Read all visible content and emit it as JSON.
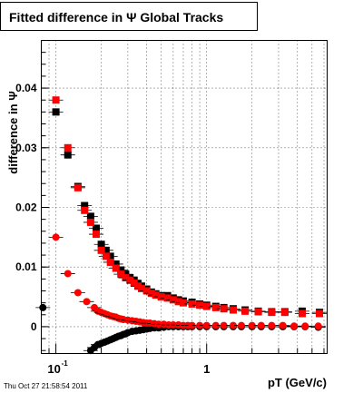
{
  "chart_data": {
    "type": "scatter",
    "title": "Fitted difference in Ψ  Global Tracks",
    "xlabel": "pT (GeV/c)",
    "ylabel": "difference in Ψ",
    "x_scale": "log",
    "xlim": [
      0.08,
      6.3
    ],
    "ylim": [
      -0.0045,
      0.048
    ],
    "grid": true,
    "x_ticks": [
      {
        "label": "10",
        "exp": "-1",
        "value": 0.1
      },
      {
        "label": "1",
        "exp": "",
        "value": 1
      }
    ],
    "y_ticks": [
      {
        "label": "0",
        "value": 0
      },
      {
        "label": "0.01",
        "value": 0.01
      },
      {
        "label": "0.02",
        "value": 0.02
      },
      {
        "label": "0.03",
        "value": 0.03
      },
      {
        "label": "0.04",
        "value": 0.04
      }
    ],
    "timestamp": "Thu Oct 27 21:58:54 2011",
    "series": [
      {
        "marker": "square",
        "color": "#000000",
        "x": [
          0.1,
          0.12,
          0.14,
          0.155,
          0.17,
          0.185,
          0.2,
          0.215,
          0.23,
          0.25,
          0.27,
          0.29,
          0.31,
          0.33,
          0.35,
          0.37,
          0.4,
          0.43,
          0.46,
          0.5,
          0.55,
          0.6,
          0.65,
          0.7,
          0.8,
          0.9,
          1.0,
          1.15,
          1.3,
          1.5,
          1.8,
          2.2,
          2.7,
          3.3,
          4.3,
          5.6
        ],
        "y": [
          0.036,
          0.0288,
          0.0235,
          0.0203,
          0.0185,
          0.0165,
          0.0138,
          0.0128,
          0.0118,
          0.0105,
          0.0095,
          0.0088,
          0.0082,
          0.0078,
          0.0072,
          0.0068,
          0.0063,
          0.0058,
          0.0055,
          0.0052,
          0.0052,
          0.0048,
          0.0045,
          0.0043,
          0.0041,
          0.0038,
          0.0036,
          0.0034,
          0.0032,
          0.003,
          0.0028,
          0.0026,
          0.0025,
          0.0025,
          0.0026,
          0.0024
        ]
      },
      {
        "marker": "square",
        "color": "#ff0000",
        "x": [
          0.1,
          0.12,
          0.14,
          0.155,
          0.17,
          0.185,
          0.2,
          0.215,
          0.23,
          0.25,
          0.27,
          0.29,
          0.31,
          0.33,
          0.35,
          0.37,
          0.4,
          0.43,
          0.46,
          0.5,
          0.55,
          0.6,
          0.65,
          0.7,
          0.8,
          0.9,
          1.0,
          1.15,
          1.3,
          1.5,
          1.8,
          2.2,
          2.7,
          3.3,
          4.3,
          5.6
        ],
        "y": [
          0.038,
          0.03,
          0.0233,
          0.0195,
          0.0175,
          0.0155,
          0.0128,
          0.0118,
          0.0108,
          0.0098,
          0.0088,
          0.0082,
          0.0078,
          0.0073,
          0.0068,
          0.0064,
          0.006,
          0.0056,
          0.0053,
          0.005,
          0.0048,
          0.0045,
          0.0042,
          0.004,
          0.0038,
          0.0036,
          0.0034,
          0.0032,
          0.003,
          0.0028,
          0.0026,
          0.0025,
          0.0024,
          0.0024,
          0.0022,
          0.0022
        ]
      },
      {
        "marker": "circle",
        "color": "#000000",
        "x": [
          0.082,
          0.17,
          0.18,
          0.19,
          0.2,
          0.21,
          0.22,
          0.23,
          0.24,
          0.25,
          0.26,
          0.27,
          0.28,
          0.29,
          0.3,
          0.32,
          0.34,
          0.36,
          0.38,
          0.4,
          0.42,
          0.45,
          0.48,
          0.52,
          0.56,
          0.6,
          0.65,
          0.7,
          0.75,
          0.8,
          0.9,
          1.0,
          1.15,
          1.3,
          1.5,
          1.7,
          2.0,
          2.3,
          2.7,
          3.2,
          3.8,
          4.5,
          5.5
        ],
        "y": [
          0.0032,
          -0.004,
          -0.0035,
          -0.003,
          -0.0028,
          -0.0026,
          -0.0024,
          -0.0022,
          -0.002,
          -0.0018,
          -0.0016,
          -0.0015,
          -0.0013,
          -0.0012,
          -0.001,
          -0.0008,
          -0.0007,
          -0.0006,
          -0.0005,
          -0.0004,
          -0.0003,
          -0.0002,
          -0.0002,
          -0.0001,
          0.0,
          0.0,
          0.0,
          0.0,
          0.0,
          0.0,
          0.0,
          0.0,
          0.0,
          0.0,
          0.0,
          0.0,
          0.0,
          0.0,
          0.0,
          0.0,
          0.0,
          0.0,
          -0.0001
        ]
      },
      {
        "marker": "circle",
        "color": "#ff0000",
        "x": [
          0.1,
          0.12,
          0.14,
          0.16,
          0.18,
          0.19,
          0.2,
          0.21,
          0.22,
          0.23,
          0.24,
          0.25,
          0.26,
          0.27,
          0.28,
          0.3,
          0.32,
          0.34,
          0.36,
          0.38,
          0.4,
          0.42,
          0.45,
          0.48,
          0.52,
          0.56,
          0.6,
          0.65,
          0.7,
          0.75,
          0.8,
          0.9,
          1.0,
          1.15,
          1.3,
          1.5,
          1.7,
          2.0,
          2.3,
          2.7,
          3.2,
          3.8,
          4.5,
          5.5
        ],
        "y": [
          0.015,
          0.0089,
          0.0057,
          0.0042,
          0.0032,
          0.0026,
          0.0024,
          0.0022,
          0.002,
          0.0018,
          0.0017,
          0.0016,
          0.0014,
          0.0013,
          0.0012,
          0.0011,
          0.001,
          0.0009,
          0.0008,
          0.0007,
          0.0006,
          0.0006,
          0.0005,
          0.0004,
          0.0004,
          0.0003,
          0.0003,
          0.0003,
          0.0002,
          0.0002,
          0.0002,
          0.0002,
          0.0002,
          0.0002,
          0.0002,
          0.0002,
          0.0002,
          0.0002,
          0.0002,
          0.0002,
          0.0002,
          0.0001,
          0.0001,
          0.0001
        ]
      }
    ]
  }
}
